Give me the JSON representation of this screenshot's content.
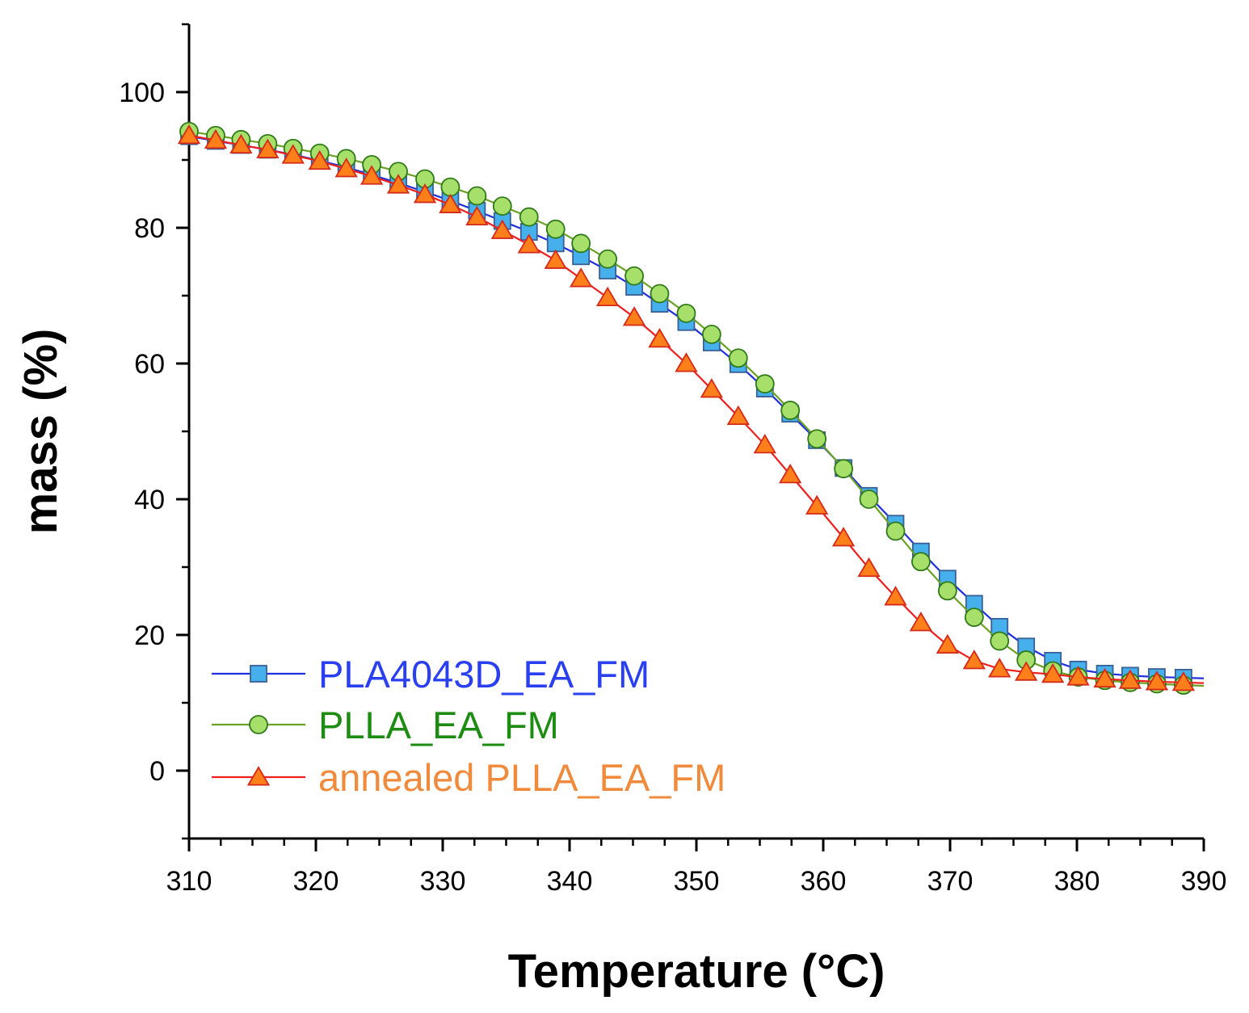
{
  "chart_data": {
    "type": "line",
    "title": "",
    "xlabel": "Temperature (°C)",
    "ylabel": "mass (%)",
    "xlim": [
      310,
      390
    ],
    "ylim": [
      -10,
      110
    ],
    "xticks": [
      310,
      320,
      330,
      340,
      350,
      360,
      370,
      380,
      390
    ],
    "yticks": [
      0,
      20,
      40,
      60,
      80,
      100
    ],
    "x_tick_labels": [
      "310",
      "320",
      "330",
      "340",
      "350",
      "360",
      "370",
      "380",
      "390"
    ],
    "y_tick_labels": [
      "0",
      "20",
      "40",
      "60",
      "80",
      "100"
    ],
    "legend_position": "bottom-left",
    "x": [
      310.0,
      312.1,
      314.1,
      316.2,
      318.2,
      320.3,
      322.4,
      324.4,
      326.5,
      328.6,
      330.6,
      332.7,
      334.7,
      336.8,
      338.9,
      340.9,
      343.0,
      345.1,
      347.1,
      349.2,
      351.2,
      353.3,
      355.4,
      357.4,
      359.5,
      361.6,
      363.6,
      365.7,
      367.7,
      369.8,
      371.9,
      373.9,
      376.0,
      378.1,
      380.1,
      382.2,
      384.2,
      386.3,
      388.4,
      390.0
    ],
    "series": [
      {
        "name": "PLA4043D_EA_FM",
        "line_color": "#1f2fe0",
        "marker": "square",
        "marker_fill": "#45b0ec",
        "marker_edge": "#3a5f96",
        "label_color": "#2a3ff0",
        "values": [
          93.5,
          92.8,
          92.2,
          91.5,
          90.8,
          89.9,
          88.9,
          87.8,
          86.6,
          85.3,
          84.0,
          82.5,
          81.0,
          79.4,
          77.7,
          75.8,
          73.7,
          71.3,
          68.8,
          66.1,
          63.1,
          59.9,
          56.3,
          52.6,
          48.7,
          44.6,
          40.5,
          36.4,
          32.3,
          28.3,
          24.6,
          21.2,
          18.3,
          16.2,
          14.9,
          14.3,
          14.0,
          13.8,
          13.7,
          13.6
        ]
      },
      {
        "name": "PLLA_EA_FM",
        "line_color": "#6aa224",
        "marker": "circle",
        "marker_fill": "#a6e06a",
        "marker_edge": "#2f7a18",
        "label_color": "#1d8c12",
        "values": [
          94.2,
          93.6,
          93.0,
          92.4,
          91.7,
          91.0,
          90.2,
          89.3,
          88.3,
          87.2,
          86.0,
          84.7,
          83.2,
          81.6,
          79.8,
          77.7,
          75.4,
          72.9,
          70.3,
          67.4,
          64.3,
          60.8,
          57.0,
          53.1,
          48.9,
          44.5,
          40.0,
          35.3,
          30.8,
          26.5,
          22.6,
          19.1,
          16.3,
          14.7,
          13.8,
          13.3,
          13.0,
          12.8,
          12.6,
          12.5
        ]
      },
      {
        "name": "annealed PLLA_EA_FM",
        "line_color": "#ee1f1f",
        "marker": "triangle",
        "marker_fill": "#ff7f1a",
        "marker_edge": "#d42a1a",
        "label_color": "#f08a3c",
        "values": [
          93.6,
          92.9,
          92.2,
          91.5,
          90.7,
          89.8,
          88.7,
          87.6,
          86.3,
          84.9,
          83.4,
          81.6,
          79.6,
          77.5,
          75.2,
          72.5,
          69.7,
          66.8,
          63.6,
          60.0,
          56.2,
          52.2,
          48.0,
          43.6,
          39.0,
          34.3,
          29.8,
          25.6,
          21.8,
          18.5,
          16.2,
          15.0,
          14.5,
          14.2,
          13.8,
          13.5,
          13.3,
          13.1,
          13.0,
          12.9
        ]
      }
    ]
  }
}
